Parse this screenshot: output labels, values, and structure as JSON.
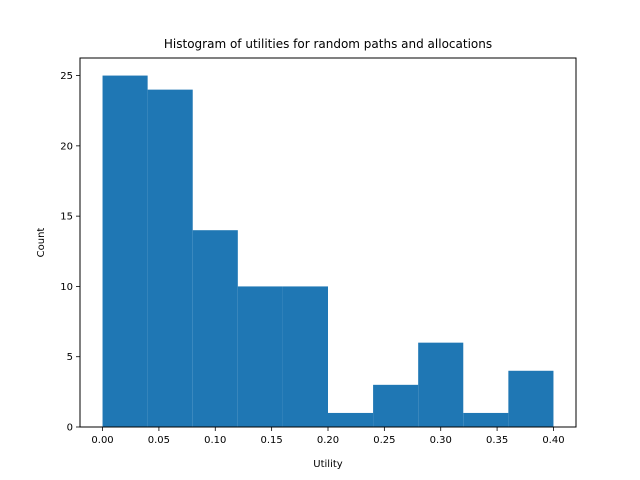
{
  "chart_data": {
    "type": "bar",
    "title": "Histogram of utilities for random paths and allocations",
    "xlabel": "Utility",
    "ylabel": "Count",
    "bins": [
      {
        "start": 0.0,
        "end": 0.04,
        "count": 25
      },
      {
        "start": 0.04,
        "end": 0.08,
        "count": 24
      },
      {
        "start": 0.08,
        "end": 0.12,
        "count": 14
      },
      {
        "start": 0.12,
        "end": 0.16,
        "count": 10
      },
      {
        "start": 0.16,
        "end": 0.2,
        "count": 10
      },
      {
        "start": 0.2,
        "end": 0.24,
        "count": 1
      },
      {
        "start": 0.24,
        "end": 0.28,
        "count": 3
      },
      {
        "start": 0.28,
        "end": 0.32,
        "count": 6
      },
      {
        "start": 0.32,
        "end": 0.36,
        "count": 1
      },
      {
        "start": 0.36,
        "end": 0.4,
        "count": 4
      }
    ],
    "xlim": [
      -0.02,
      0.42
    ],
    "ylim": [
      0,
      26.25
    ],
    "xticks": [
      0.0,
      0.05,
      0.1,
      0.15,
      0.2,
      0.25,
      0.3,
      0.35,
      0.4
    ],
    "xtick_labels": [
      "0.00",
      "0.05",
      "0.10",
      "0.15",
      "0.20",
      "0.25",
      "0.30",
      "0.35",
      "0.40"
    ],
    "yticks": [
      0,
      5,
      10,
      15,
      20,
      25
    ],
    "ytick_labels": [
      "0",
      "5",
      "10",
      "15",
      "20",
      "25"
    ],
    "grid": false,
    "bar_color": "#1f77b4"
  }
}
